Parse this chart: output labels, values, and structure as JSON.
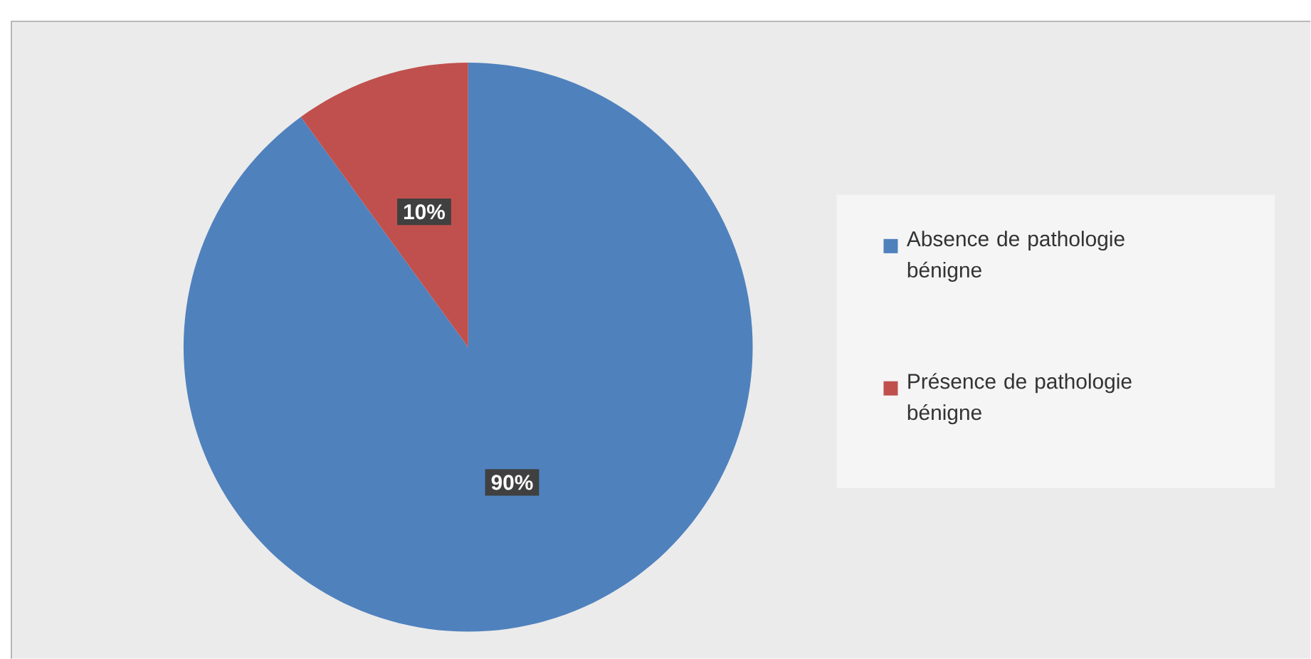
{
  "chart_data": {
    "type": "pie",
    "categories": [
      "Absence de pathologie bénigne",
      "Présence de pathologie bénigne"
    ],
    "values": [
      90,
      10
    ],
    "value_labels": [
      "90%",
      "10%"
    ],
    "colors": [
      "#4f81bd",
      "#c0504d"
    ],
    "data_labels": true,
    "legend": "right"
  }
}
